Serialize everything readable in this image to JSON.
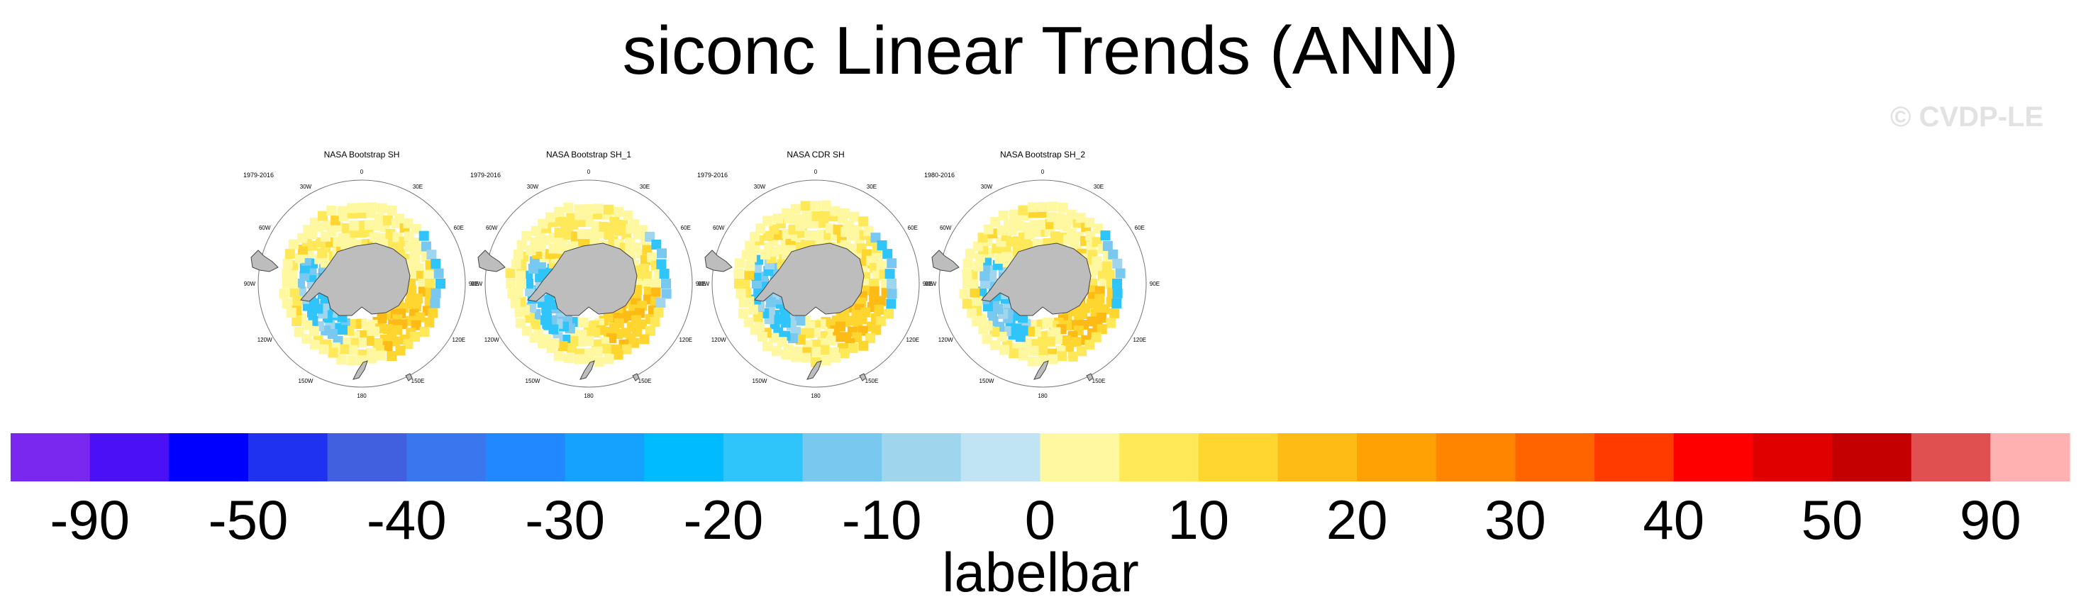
{
  "title": "siconc Linear Trends (ANN)",
  "watermark": "© CVDP-LE",
  "panels": [
    {
      "title": "NASA Bootstrap SH",
      "years": "1979-2016",
      "variant": 0
    },
    {
      "title": "NASA Bootstrap SH_1",
      "years": "1979-2016",
      "variant": 1
    },
    {
      "title": "NASA CDR SH",
      "years": "1979-2016",
      "variant": 2
    },
    {
      "title": "NASA Bootstrap SH_2",
      "years": "1980-2016",
      "variant": 3
    }
  ],
  "longitude_labels": {
    "n": "0",
    "ne30": "30E",
    "e60": "60E",
    "e90": "90E",
    "e120": "120E",
    "e150": "150E",
    "s": "180",
    "w150": "150W",
    "w120": "120W",
    "w90": "90W",
    "w60": "60W",
    "nw30": "30W"
  },
  "colors": {
    "land": "#bdbdbd",
    "land_outline": "#444444",
    "negative": [
      "#7a28f0",
      "#4b10f5",
      "#0000ff",
      "#1e32f0",
      "#4060e0",
      "#3a76ee",
      "#2288ff",
      "#15a2ff",
      "#00bbff",
      "#30c5fa",
      "#78c8f0",
      "#a0d5ee",
      "#c0e4f4"
    ],
    "positive": [
      "#fff8a0",
      "#ffe959",
      "#ffd530",
      "#ffbb15",
      "#ffa005",
      "#ff8500",
      "#ff6400",
      "#ff3b00",
      "#ff0000",
      "#e00000",
      "#c40000",
      "#e05050",
      "#ffb0b0"
    ]
  },
  "chart_data": {
    "type": "heatmap",
    "title": "siconc Linear Trends (ANN)",
    "panels": [
      "NASA Bootstrap SH",
      "NASA Bootstrap SH_1",
      "NASA CDR SH",
      "NASA Bootstrap SH_2"
    ],
    "periods": [
      "1979-2016",
      "1979-2016",
      "1979-2016",
      "1980-2016"
    ],
    "labelbar": {
      "title": "labelbar",
      "tick_labels": [
        "-90",
        "-50",
        "-40",
        "-30",
        "-20",
        "-10",
        "0",
        "10",
        "20",
        "30",
        "40",
        "50",
        "90"
      ],
      "colors": [
        "#7a28f0",
        "#4b10f5",
        "#0000ff",
        "#1e32f0",
        "#4060e0",
        "#3a76ee",
        "#2288ff",
        "#15a2ff",
        "#00bbff",
        "#30c5fa",
        "#78c8f0",
        "#a0d5ee",
        "#c0e4f4",
        "#fff8a0",
        "#ffe959",
        "#ffd530",
        "#ffbb15",
        "#ffa005",
        "#ff8500",
        "#ff6400",
        "#ff3b00",
        "#ff0000",
        "#e00000",
        "#c40000",
        "#e05050",
        "#ffb0b0"
      ]
    }
  }
}
